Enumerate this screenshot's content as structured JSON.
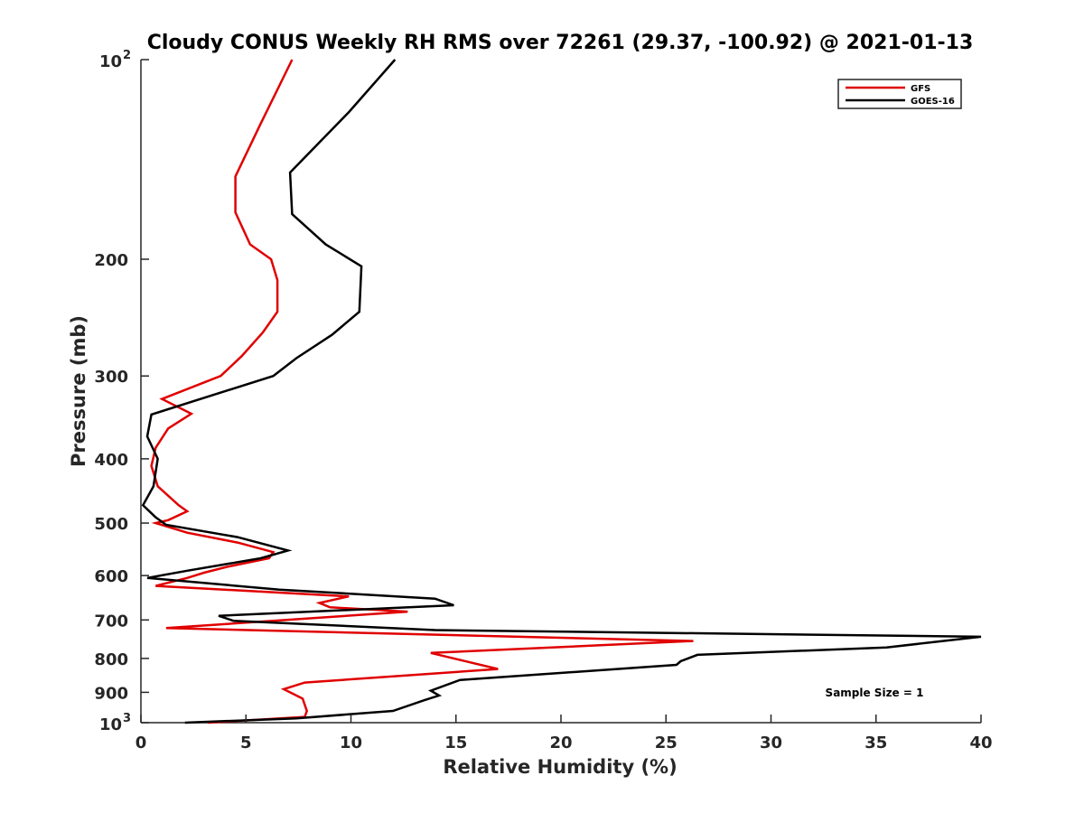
{
  "chart_data": {
    "type": "line",
    "title": "Cloudy CONUS Weekly RH RMS over 72261 (29.37, -100.92) @ 2021-01-13",
    "xlabel": "Relative Humidity (%)",
    "ylabel": "Pressure (mb)",
    "xlim": [
      0,
      40
    ],
    "ylim": [
      100,
      1000
    ],
    "yscale": "log",
    "y_reversed": true,
    "x_ticks": [
      "0",
      "5",
      "10",
      "15",
      "20",
      "25",
      "30",
      "35",
      "40"
    ],
    "y_ticks": [
      {
        "value": 100,
        "label": "10",
        "sup": "2"
      },
      {
        "value": 200,
        "label": "200",
        "sup": ""
      },
      {
        "value": 300,
        "label": "300",
        "sup": ""
      },
      {
        "value": 400,
        "label": "400",
        "sup": ""
      },
      {
        "value": 500,
        "label": "500",
        "sup": ""
      },
      {
        "value": 600,
        "label": "600",
        "sup": ""
      },
      {
        "value": 700,
        "label": "700",
        "sup": ""
      },
      {
        "value": 800,
        "label": "800",
        "sup": ""
      },
      {
        "value": 900,
        "label": "900",
        "sup": ""
      },
      {
        "value": 1000,
        "label": "10",
        "sup": "3"
      }
    ],
    "grid": false,
    "legend_position": "top-right",
    "annotation": "Sample Size = 1",
    "series": [
      {
        "name": "GFS",
        "color": "#e00000",
        "points": [
          [
            7.2,
            100
          ],
          [
            5.7,
            125
          ],
          [
            4.5,
            150
          ],
          [
            4.5,
            170
          ],
          [
            5.2,
            190
          ],
          [
            6.2,
            200
          ],
          [
            6.5,
            215
          ],
          [
            6.5,
            240
          ],
          [
            5.8,
            258
          ],
          [
            4.8,
            280
          ],
          [
            3.8,
            300
          ],
          [
            1.0,
            325
          ],
          [
            2.4,
            342
          ],
          [
            1.3,
            360
          ],
          [
            0.7,
            385
          ],
          [
            0.5,
            410
          ],
          [
            0.8,
            440
          ],
          [
            1.8,
            470
          ],
          [
            2.2,
            480
          ],
          [
            1.3,
            495
          ],
          [
            0.7,
            500
          ],
          [
            2.2,
            517
          ],
          [
            4.6,
            535
          ],
          [
            6.3,
            553
          ],
          [
            6.1,
            565
          ],
          [
            4.1,
            582
          ],
          [
            3.0,
            594
          ],
          [
            2.2,
            605
          ],
          [
            0.7,
            622
          ],
          [
            9.9,
            645
          ],
          [
            8.5,
            660
          ],
          [
            9.0,
            670
          ],
          [
            12.7,
            680
          ],
          [
            1.2,
            720
          ],
          [
            26.3,
            753
          ],
          [
            13.8,
            785
          ],
          [
            17.0,
            830
          ],
          [
            7.8,
            870
          ],
          [
            6.8,
            890
          ],
          [
            7.7,
            920
          ],
          [
            7.9,
            960
          ],
          [
            7.8,
            980
          ],
          [
            3.2,
            1000
          ]
        ]
      },
      {
        "name": "GOES-16",
        "color": "#000000",
        "points": [
          [
            12.1,
            100
          ],
          [
            9.9,
            120
          ],
          [
            7.1,
            148
          ],
          [
            7.2,
            171
          ],
          [
            8.8,
            190
          ],
          [
            10.5,
            205
          ],
          [
            10.4,
            240
          ],
          [
            9.1,
            260
          ],
          [
            7.4,
            282
          ],
          [
            6.3,
            300
          ],
          [
            0.5,
            343
          ],
          [
            0.3,
            370
          ],
          [
            0.8,
            400
          ],
          [
            0.6,
            440
          ],
          [
            0.1,
            470
          ],
          [
            0.7,
            490
          ],
          [
            1.2,
            503
          ],
          [
            4.6,
            525
          ],
          [
            7.0,
            550
          ],
          [
            5.7,
            565
          ],
          [
            2.2,
            590
          ],
          [
            0.3,
            605
          ],
          [
            6.6,
            630
          ],
          [
            14.0,
            650
          ],
          [
            14.9,
            665
          ],
          [
            3.7,
            690
          ],
          [
            4.4,
            702
          ],
          [
            14.0,
            725
          ],
          [
            40.0,
            742
          ],
          [
            35.5,
            770
          ],
          [
            26.5,
            790
          ],
          [
            25.7,
            808
          ],
          [
            25.5,
            818
          ],
          [
            15.2,
            862
          ],
          [
            13.8,
            895
          ],
          [
            14.2,
            910
          ],
          [
            13.5,
            925
          ],
          [
            12.0,
            960
          ],
          [
            7.4,
            985
          ],
          [
            2.1,
            1000
          ]
        ]
      }
    ]
  }
}
